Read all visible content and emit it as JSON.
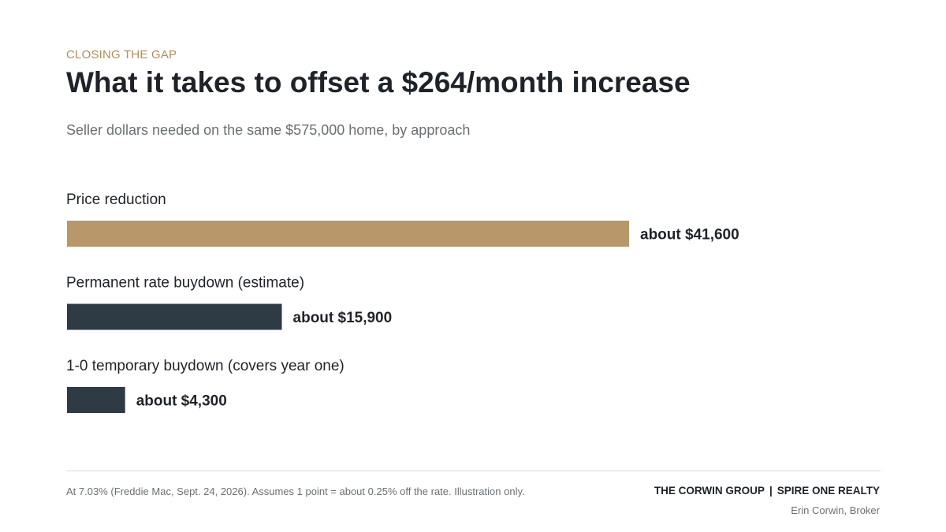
{
  "header": {
    "eyebrow": "CLOSING THE GAP",
    "title": "What it takes to offset a $264/month increase",
    "subtitle": "Seller dollars needed on the same $575,000 home, by approach"
  },
  "chart_data": {
    "type": "bar",
    "orientation": "horizontal",
    "title": "What it takes to offset a $264/month increase",
    "subtitle": "Seller dollars needed on the same $575,000 home, by approach",
    "categories": [
      "Price reduction",
      "Permanent rate buydown (estimate)",
      "1-0 temporary buydown (covers year one)"
    ],
    "values": [
      41600,
      15900,
      4300
    ],
    "value_labels": [
      "about $41,600",
      "about $15,900",
      "about $4,300"
    ],
    "colors": [
      "#b8976a",
      "#2e3a44",
      "#2e3a44"
    ],
    "grid": false,
    "legend": "none"
  },
  "footer": {
    "note": "At 7.03% (Freddie Mac, Sept. 24, 2026). Assumes 1 point = about 0.25% off the rate. Illustration only.",
    "brand_left": "THE CORWIN GROUP",
    "brand_separator": "|",
    "brand_right": "SPIRE ONE REALTY",
    "broker": "Erin Corwin, Broker"
  }
}
